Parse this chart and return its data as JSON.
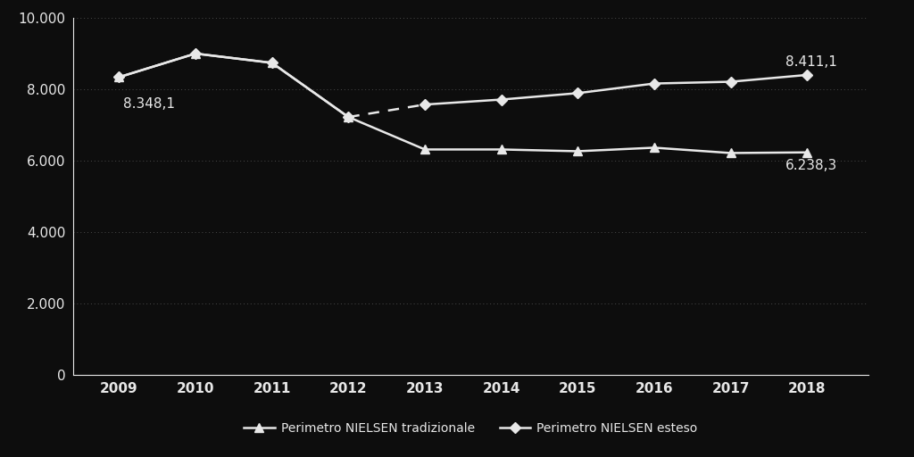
{
  "years": [
    2009,
    2010,
    2011,
    2012,
    2013,
    2014,
    2015,
    2016,
    2017,
    2018
  ],
  "tradizionale": [
    8348.1,
    9010.0,
    8750.0,
    7230.0,
    6320.0,
    6320.0,
    6270.0,
    6370.0,
    6220.0,
    6238.3
  ],
  "esteso": [
    8348.1,
    9010.0,
    8750.0,
    7230.0,
    7580.0,
    7720.0,
    7900.0,
    8170.0,
    8220.0,
    8411.1
  ],
  "label_2009_trad": "8.348,1",
  "label_2018_trad": "6.238,3",
  "label_2018_esteso": "8.411,1",
  "legend_trad": "Perimetro NIELSEN tradizionale",
  "legend_esteso": "Perimetro NIELSEN esteso",
  "bg_color": "#0d0d0d",
  "line_color": "#e8e8e8",
  "grid_color": "#4a4a4a",
  "text_color": "#e8e8e8",
  "ylim": [
    0,
    10000
  ],
  "yticks": [
    0,
    2000,
    4000,
    6000,
    8000,
    10000
  ],
  "ytick_labels": [
    "0",
    "2.000",
    "4.000",
    "6.000",
    "8.000",
    "10.000"
  ],
  "annotation_fontsize": 11,
  "tick_fontsize": 11,
  "legend_fontsize": 10
}
